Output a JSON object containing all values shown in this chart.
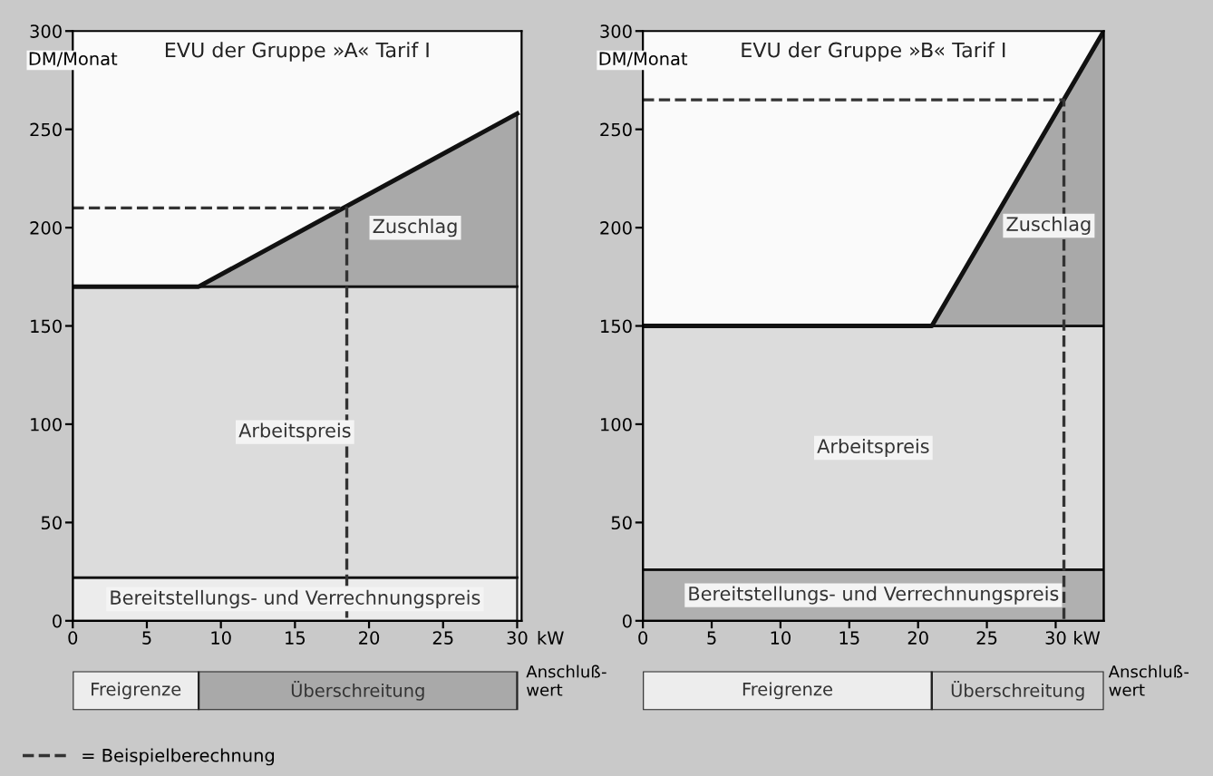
{
  "chart_data": [
    {
      "type": "area",
      "stacked": true,
      "title": "EVU der Gruppe »A« Tarif I",
      "ylabel": "DM/Monat",
      "xlabel": "Anschluß-\nwert",
      "annotations": [
        "kW"
      ],
      "x": [
        0,
        8.5,
        30
      ],
      "xlim": [
        0,
        30.3
      ],
      "ylim": [
        0,
        300
      ],
      "xticks": [
        0,
        5,
        10,
        15,
        20,
        25,
        30
      ],
      "yticks": [
        0,
        50,
        100,
        150,
        200,
        250,
        300
      ],
      "series": [
        {
          "name": "Bereitstellungs- und Verrechnungspreis",
          "color": "#ececec",
          "values": [
            22,
            22,
            22
          ]
        },
        {
          "name": "Arbeitspreis",
          "color": "#dcdcdc",
          "values": [
            148,
            148,
            148
          ]
        },
        {
          "name": "Zuschlag",
          "color": "#a9a9a9",
          "values": [
            0,
            0,
            88
          ]
        },
        {
          "name": "= Beispielberechnung",
          "type": "line",
          "line_style": "dashed",
          "color": "#333333",
          "x": [
            0,
            18.5,
            18.5
          ],
          "values": [
            210,
            210,
            0
          ]
        }
      ],
      "legend": "bottom left",
      "grid": false
    },
    {
      "type": "bar",
      "orientation": "horizontal",
      "stacked": true,
      "categories": [
        null
      ],
      "xlim": [
        0,
        30.3
      ],
      "tick_labels": false,
      "series": [
        {
          "name": "Freigrenze",
          "color": "#ededed",
          "values": [
            8.5
          ]
        },
        {
          "name": "Überschreitung",
          "color": "#a9a9a9",
          "values": [
            21.5
          ]
        }
      ]
    },
    {
      "type": "area",
      "stacked": true,
      "title": "EVU der Gruppe »B« Tarif I",
      "ylabel": "DM/Monat",
      "xlabel": "Anschluß-\nwert",
      "annotations": [
        "kW"
      ],
      "x": [
        0,
        21,
        33.5
      ],
      "xlim": [
        0,
        33.5
      ],
      "ylim": [
        0,
        300
      ],
      "xticks": [
        0,
        5,
        10,
        15,
        20,
        25,
        30
      ],
      "yticks": [
        0,
        50,
        100,
        150,
        200,
        250,
        300
      ],
      "series": [
        {
          "name": "Bereitstellungs- und Verrechnungspreis",
          "color": "#b0b0b0",
          "values": [
            26,
            26,
            26
          ]
        },
        {
          "name": "Arbeitspreis",
          "color": "#dcdcdc",
          "values": [
            124,
            124,
            124
          ]
        },
        {
          "name": "Zuschlag",
          "color": "#a9a9a9",
          "values": [
            0,
            0,
            150
          ]
        },
        {
          "type": "line",
          "line_style": "dashed",
          "color": "#333333",
          "x": [
            0,
            30.6,
            30.6
          ],
          "values": [
            265,
            265,
            0
          ]
        }
      ],
      "grid": false
    },
    {
      "type": "bar",
      "orientation": "horizontal",
      "stacked": true,
      "categories": [
        null
      ],
      "xlim": [
        0,
        33.5
      ],
      "tick_labels": false,
      "series": [
        {
          "name": "Freigrenze",
          "color": "#ededed",
          "values": [
            21
          ]
        },
        {
          "name": "Überschreitung",
          "color": "#cfcfcf",
          "values": [
            12.5
          ]
        }
      ]
    }
  ]
}
